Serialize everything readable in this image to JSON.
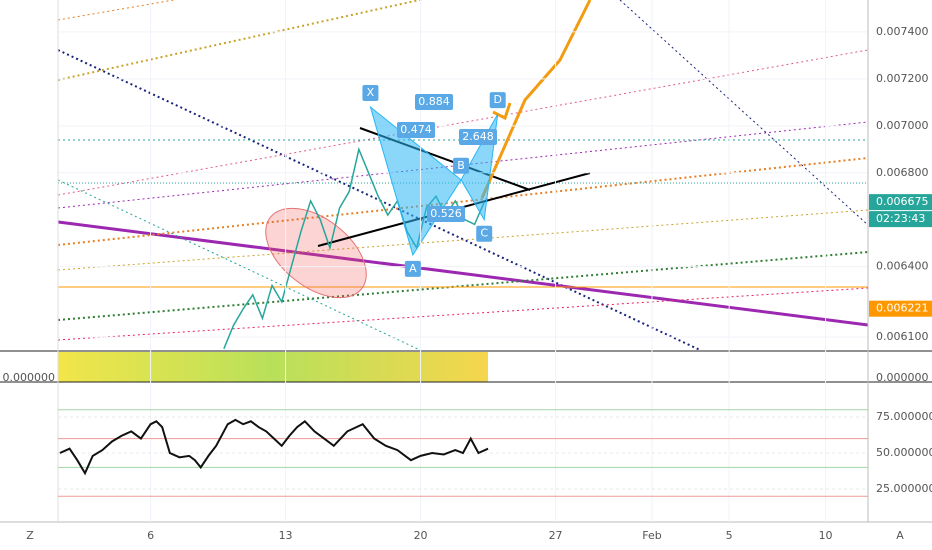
{
  "chart_data": {
    "type": "line",
    "price": {
      "x": [
        9.8,
        10.3,
        10.8,
        11.3,
        11.8,
        12.3,
        12.8,
        13.3,
        13.8,
        14.3,
        14.8,
        15.3,
        15.8,
        16.3,
        16.8,
        17.3,
        17.8,
        18.3,
        18.8,
        19.3,
        19.8,
        20.3,
        20.8,
        21.3,
        21.8,
        22.3,
        22.8,
        23.3
      ],
      "values": [
        0.00605,
        0.00615,
        0.00622,
        0.00628,
        0.00618,
        0.00632,
        0.00625,
        0.0064,
        0.00655,
        0.00668,
        0.0066,
        0.00648,
        0.00665,
        0.00672,
        0.0069,
        0.0068,
        0.0067,
        0.00662,
        0.00668,
        0.00655,
        0.00648,
        0.00665,
        0.0067,
        0.00662,
        0.00668,
        0.0066,
        0.00658,
        0.006675
      ],
      "color": "#26a69a"
    },
    "xlim": [
      1.2,
      43.2
    ],
    "xticks": [
      6,
      13,
      20,
      27,
      {
        "value": 32,
        "label": "Feb"
      },
      {
        "value": 36,
        "label": "5"
      },
      {
        "value": 41,
        "label": "10"
      }
    ],
    "ylim": [
      0.006045,
      0.007536
    ],
    "yticks": [
      {
        "value": 0.0061,
        "label": "0.006100"
      },
      {
        "value": 0.0064,
        "label": "0.006400"
      },
      {
        "value": 0.0068,
        "label": "0.006800"
      },
      {
        "value": 0.007,
        "label": "0.007000"
      },
      {
        "value": 0.0072,
        "label": "0.007200"
      },
      {
        "value": 0.0074,
        "label": "0.007400"
      }
    ],
    "last_price": {
      "value": 0.006675,
      "label": "0.006675",
      "countdown": "02:23:43"
    },
    "level_price": {
      "value": 0.006221,
      "label": "0.006221"
    },
    "pattern": {
      "points": [
        {
          "label": "X",
          "x": 17.4,
          "price": 0.00708
        },
        {
          "label": "A",
          "x": 19.6,
          "price": 0.00645
        },
        {
          "label": "B",
          "x": 22.1,
          "price": 0.00677
        },
        {
          "label": "C",
          "x": 23.3,
          "price": 0.0066
        },
        {
          "label": "D",
          "x": 24.0,
          "price": 0.00705
        }
      ],
      "ratios": [
        "0.884",
        "0.474",
        "2.648",
        "0.526"
      ]
    },
    "volume_pane": {
      "left_label": "0.000000",
      "right_label": "0.000000"
    },
    "rsi": {
      "x": [
        1.3,
        1.8,
        2.2,
        2.6,
        3.0,
        3.5,
        4.0,
        4.5,
        5.0,
        5.5,
        6.0,
        6.3,
        6.6,
        7.0,
        7.5,
        8.0,
        8.3,
        8.6,
        9.0,
        9.4,
        10.0,
        10.4,
        10.8,
        11.2,
        11.6,
        12.0,
        12.4,
        12.8,
        13.2,
        13.6,
        14.0,
        14.5,
        15.0,
        15.5,
        16.2,
        17.0,
        17.6,
        18.2,
        18.8,
        19.5,
        20.0,
        20.6,
        21.2,
        21.8,
        22.2,
        22.6,
        23.0,
        23.5
      ],
      "values": [
        50,
        53,
        45,
        36,
        48,
        52,
        58,
        62,
        65,
        60,
        70,
        72,
        68,
        50,
        47,
        48,
        45,
        40,
        48,
        55,
        70,
        73,
        70,
        72,
        68,
        65,
        60,
        55,
        62,
        68,
        72,
        65,
        60,
        55,
        65,
        70,
        60,
        55,
        52,
        45,
        48,
        50,
        49,
        52,
        50,
        60,
        50,
        53
      ],
      "ylim": [
        2.1,
        98.6
      ],
      "yticks": [
        {
          "value": 25,
          "label": "25.000000"
        },
        {
          "value": 50,
          "label": "50.000000"
        },
        {
          "value": 75,
          "label": "75.000000"
        }
      ],
      "levels": [
        80,
        60,
        40,
        20
      ]
    },
    "footer": {
      "left": "Z",
      "right": "A"
    }
  }
}
